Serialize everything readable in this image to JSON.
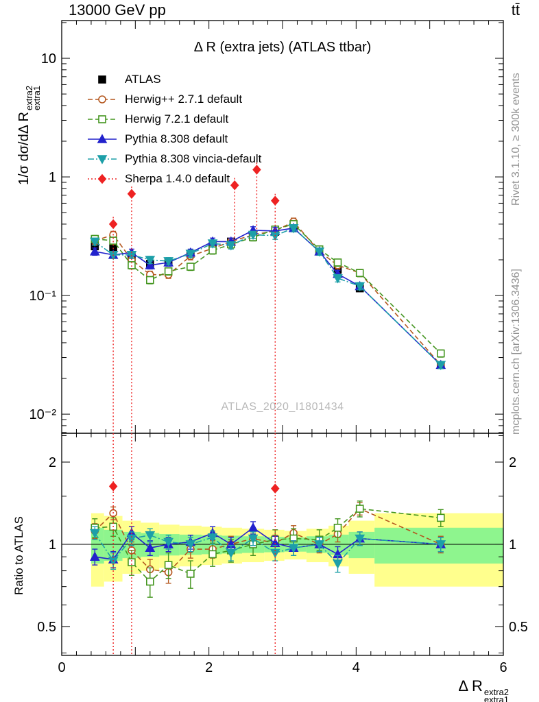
{
  "page": {
    "header_left": "13000 GeV pp",
    "header_right": "tt̄",
    "right_label_top": "Rivet 3.1.10, ≥ 300k events",
    "right_label_bottom": "mcplots.cern.ch [arXiv:1306.3436]",
    "watermark": "ATLAS_2020_I1801434"
  },
  "axes": {
    "main_title": "Δ R (extra jets) (ATLAS ttbar)",
    "ylabel_main": {
      "prefix": "1/σ dσ/dΔ R",
      "sup": "extra2",
      "sub": "extra1"
    },
    "ylabel_ratio": "Ratio to ATLAS",
    "xlabel": {
      "prefix": "Δ R",
      "sup": "extra2",
      "sub": "extra1"
    }
  },
  "chart_data": {
    "type": "line",
    "title": "Δ R (extra jets) (ATLAS ttbar)",
    "xlabel": "Δ R^extra2_extra1",
    "ylabel": "1/σ dσ/dΔ R^extra2_extra1",
    "ratio_label": "Ratio to ATLAS",
    "legend_position": "top-left",
    "axes": {
      "x_range": [
        0,
        6
      ],
      "x_ticks": [
        0,
        2,
        4,
        6
      ],
      "x_minor_step": 0.2,
      "y_main_log": true,
      "y_main_range": [
        0.0069,
        20.8
      ],
      "y_main_ticks": [
        {
          "v": 0.01,
          "label": "10⁻²"
        },
        {
          "v": 0.1,
          "label": "10⁻¹"
        },
        {
          "v": 1,
          "label": "1"
        },
        {
          "v": 10,
          "label": "10"
        }
      ],
      "y_ratio_log": true,
      "y_ratio_range": [
        0.392,
        2.55
      ],
      "y_ratio_ticks": [
        {
          "v": 0.5,
          "label": "0.5"
        },
        {
          "v": 1,
          "label": "1"
        },
        {
          "v": 2,
          "label": "2"
        }
      ],
      "y_ratio_minor": [
        0.4,
        0.6,
        0.7,
        0.8,
        0.9,
        1.5,
        2.5
      ]
    },
    "x": [
      0.45,
      0.7,
      0.95,
      1.2,
      1.45,
      1.75,
      2.05,
      2.3,
      2.6,
      2.9,
      3.15,
      3.5,
      3.75,
      4.05,
      5.15
    ],
    "series": [
      {
        "id": "atlas",
        "name": "ATLAS",
        "color": "#000000",
        "marker": "square",
        "fill": true,
        "line": "none",
        "yerr_rel": 0.06,
        "y": [
          0.26,
          0.25,
          0.21,
          0.185,
          0.19,
          0.225,
          0.26,
          0.285,
          0.31,
          0.345,
          0.38,
          0.235,
          0.165,
          0.115,
          0.026
        ]
      },
      {
        "id": "herwigpp",
        "name": "Herwig++ 2.7.1 default",
        "color": "#b4571e",
        "marker": "circle",
        "fill": false,
        "line": "dash",
        "yerr_rel": 0.07,
        "ratio_err": 0.07,
        "y": [
          0.29,
          0.325,
          0.2,
          0.15,
          0.15,
          0.215,
          0.25,
          0.285,
          0.325,
          0.35,
          0.42,
          0.235,
          0.18,
          0.155,
          0.026
        ],
        "ratio": [
          1.12,
          1.3,
          0.95,
          0.81,
          0.79,
          0.96,
          0.96,
          1.0,
          1.05,
          1.01,
          1.1,
          1.0,
          1.09,
          1.35,
          1.0
        ]
      },
      {
        "id": "herwig7",
        "name": "Herwig 7.2.1 default",
        "color": "#44951f",
        "marker": "square",
        "fill": false,
        "line": "dash",
        "yerr_rel": 0.07,
        "ratio_err": 0.09,
        "y": [
          0.3,
          0.29,
          0.18,
          0.135,
          0.16,
          0.175,
          0.24,
          0.27,
          0.31,
          0.36,
          0.4,
          0.245,
          0.19,
          0.155,
          0.0325
        ],
        "ratio": [
          1.15,
          1.16,
          0.86,
          0.73,
          0.84,
          0.78,
          0.92,
          0.95,
          1.0,
          1.04,
          1.05,
          1.04,
          1.15,
          1.35,
          1.25
        ]
      },
      {
        "id": "pythia",
        "name": "Pythia 8.308 default",
        "color": "#2222cc",
        "marker": "tri-up",
        "fill": true,
        "line": "solid",
        "yerr_rel": 0.07,
        "ratio_err": 0.06,
        "y": [
          0.235,
          0.22,
          0.23,
          0.18,
          0.19,
          0.23,
          0.285,
          0.285,
          0.355,
          0.35,
          0.37,
          0.235,
          0.152,
          0.12,
          0.026
        ],
        "ratio": [
          0.9,
          0.88,
          1.1,
          0.97,
          1.0,
          1.02,
          1.1,
          1.0,
          1.15,
          1.01,
          0.97,
          1.0,
          0.92,
          1.05,
          1.0
        ]
      },
      {
        "id": "vincia",
        "name": "Pythia 8.308 vincia-default",
        "color": "#1d9fa8",
        "marker": "tri-down",
        "fill": true,
        "line": "dashdot",
        "yerr_rel": 0.07,
        "ratio_err": 0.06,
        "y": [
          0.285,
          0.22,
          0.22,
          0.2,
          0.195,
          0.225,
          0.275,
          0.265,
          0.325,
          0.32,
          0.37,
          0.235,
          0.14,
          0.12,
          0.026
        ],
        "ratio": [
          1.1,
          0.87,
          1.05,
          1.08,
          1.02,
          1.0,
          1.06,
          0.93,
          1.05,
          0.93,
          0.97,
          1.0,
          0.85,
          1.05,
          1.0
        ]
      },
      {
        "id": "sherpa",
        "name": "Sherpa 1.4.0 default",
        "color": "#ee2222",
        "marker": "diamond",
        "fill": true,
        "line": "dot",
        "x": [
          0.7,
          0.95,
          2.35,
          2.65,
          2.9
        ],
        "y": [
          0.4,
          0.72,
          0.85,
          1.15,
          0.63
        ],
        "err_lo": [
          0.007,
          0.007,
          0.27,
          0.33,
          0.007
        ],
        "err_hi": [
          0.46,
          0.83,
          0.98,
          1.32,
          0.72
        ],
        "vlines": [
          0.7,
          0.95,
          2.9
        ],
        "ratio_points": [
          {
            "x": 0.7,
            "r": 1.63
          },
          {
            "x": 2.9,
            "r": 1.6
          }
        ]
      }
    ],
    "bands": {
      "yellow_color": "#ffff8d",
      "green_color": "#8ef58e",
      "edges": [
        0.4,
        0.575,
        0.825,
        1.075,
        1.325,
        1.6,
        1.9,
        2.175,
        2.45,
        2.75,
        3.025,
        3.325,
        3.625,
        3.9,
        4.25,
        6.0
      ],
      "yellow": [
        0.3,
        0.27,
        0.22,
        0.2,
        0.18,
        0.17,
        0.16,
        0.15,
        0.14,
        0.13,
        0.12,
        0.14,
        0.17,
        0.22,
        0.3
      ],
      "green": [
        0.15,
        0.13,
        0.11,
        0.1,
        0.09,
        0.085,
        0.08,
        0.075,
        0.07,
        0.065,
        0.06,
        0.07,
        0.085,
        0.11,
        0.15
      ]
    }
  }
}
